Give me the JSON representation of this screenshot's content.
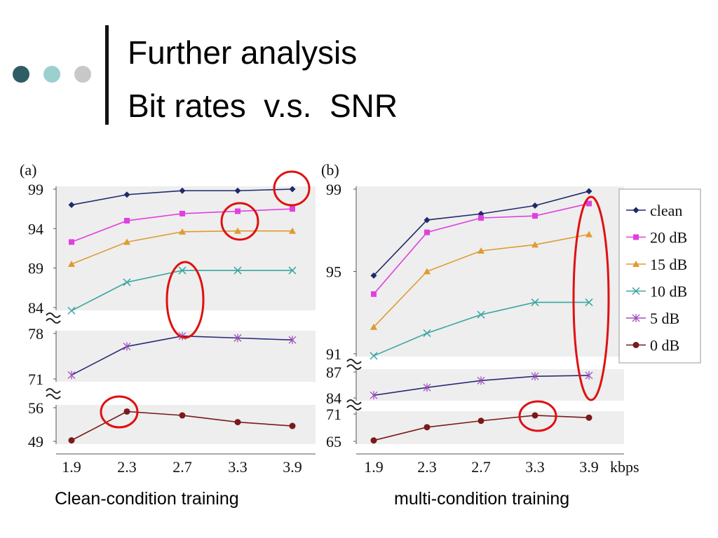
{
  "slide": {
    "title_line1": "Further analysis",
    "title_line2": "Bit rates  v.s.  SNR",
    "colors": {
      "dot1": "#2f5d65",
      "dot2": "#9ccfd0",
      "dot3": "#c8c8c8",
      "accent_bar": "#111111",
      "highlight": "#e01010"
    }
  },
  "captions": {
    "left": "Clean-condition training",
    "right": "multi-condition training"
  },
  "legend": [
    {
      "label": "clean",
      "color": "#1f2a6b",
      "marker": "diamond"
    },
    {
      "label": "20 dB",
      "color": "#e040e0",
      "marker": "square"
    },
    {
      "label": "15 dB",
      "color": "#e09a30",
      "marker": "triangle"
    },
    {
      "label": "10 dB",
      "color": "#3aa6a0",
      "marker": "x"
    },
    {
      "label": "5 dB",
      "color": "#a050c0",
      "marker": "star"
    },
    {
      "label": "0 dB",
      "color": "#7a1a1a",
      "marker": "circle"
    }
  ],
  "chart_data": [
    {
      "type": "line",
      "panel_label": "(a)",
      "categories": [
        "1.9",
        "2.3",
        "2.7",
        "3.3",
        "3.9"
      ],
      "xlabel": "",
      "series": [
        {
          "name": "clean",
          "values": [
            97.0,
            98.3,
            98.8,
            98.8,
            99.0
          ]
        },
        {
          "name": "20 dB",
          "values": [
            92.3,
            95.0,
            95.9,
            96.2,
            96.5
          ]
        },
        {
          "name": "15 dB",
          "values": [
            89.5,
            92.3,
            93.6,
            93.7,
            93.7
          ]
        },
        {
          "name": "10 dB",
          "values": [
            83.6,
            87.2,
            88.7,
            88.7,
            88.7
          ]
        },
        {
          "name": "5 dB",
          "values": [
            71.6,
            76.0,
            77.6,
            77.3,
            77.0
          ]
        },
        {
          "name": "0 dB",
          "values": [
            49.2,
            55.2,
            54.4,
            53.0,
            52.2
          ]
        }
      ],
      "y_segments": [
        {
          "ticks": [
            "99",
            "94",
            "89",
            "84"
          ],
          "range": [
            84,
            99
          ]
        },
        {
          "ticks": [
            "78",
            "71"
          ],
          "range": [
            71,
            78
          ]
        },
        {
          "ticks": [
            "56",
            "49"
          ],
          "range": [
            49,
            56
          ]
        }
      ]
    },
    {
      "type": "line",
      "panel_label": "(b)",
      "categories": [
        "1.9",
        "2.3",
        "2.7",
        "3.3",
        "3.9"
      ],
      "xlabel": "kbps",
      "series": [
        {
          "name": "clean",
          "values": [
            94.8,
            97.5,
            97.8,
            98.2,
            98.9
          ]
        },
        {
          "name": "20 dB",
          "values": [
            93.9,
            96.9,
            97.6,
            97.7,
            98.3
          ]
        },
        {
          "name": "15 dB",
          "values": [
            92.3,
            95.0,
            96.0,
            96.3,
            96.8
          ]
        },
        {
          "name": "10 dB",
          "values": [
            90.9,
            92.0,
            92.9,
            93.5,
            93.5
          ]
        },
        {
          "name": "5 dB",
          "values": [
            84.3,
            85.2,
            86.0,
            86.5,
            86.6
          ]
        },
        {
          "name": "0 dB",
          "values": [
            65.2,
            68.1,
            69.5,
            70.7,
            70.2
          ]
        }
      ],
      "y_segments": [
        {
          "ticks": [
            "99",
            "95",
            "91"
          ],
          "range": [
            91,
            99
          ]
        },
        {
          "ticks": [
            "87",
            "84"
          ],
          "range": [
            84,
            87
          ]
        },
        {
          "ticks": [
            "71",
            "65"
          ],
          "range": [
            65,
            71
          ]
        }
      ]
    }
  ]
}
